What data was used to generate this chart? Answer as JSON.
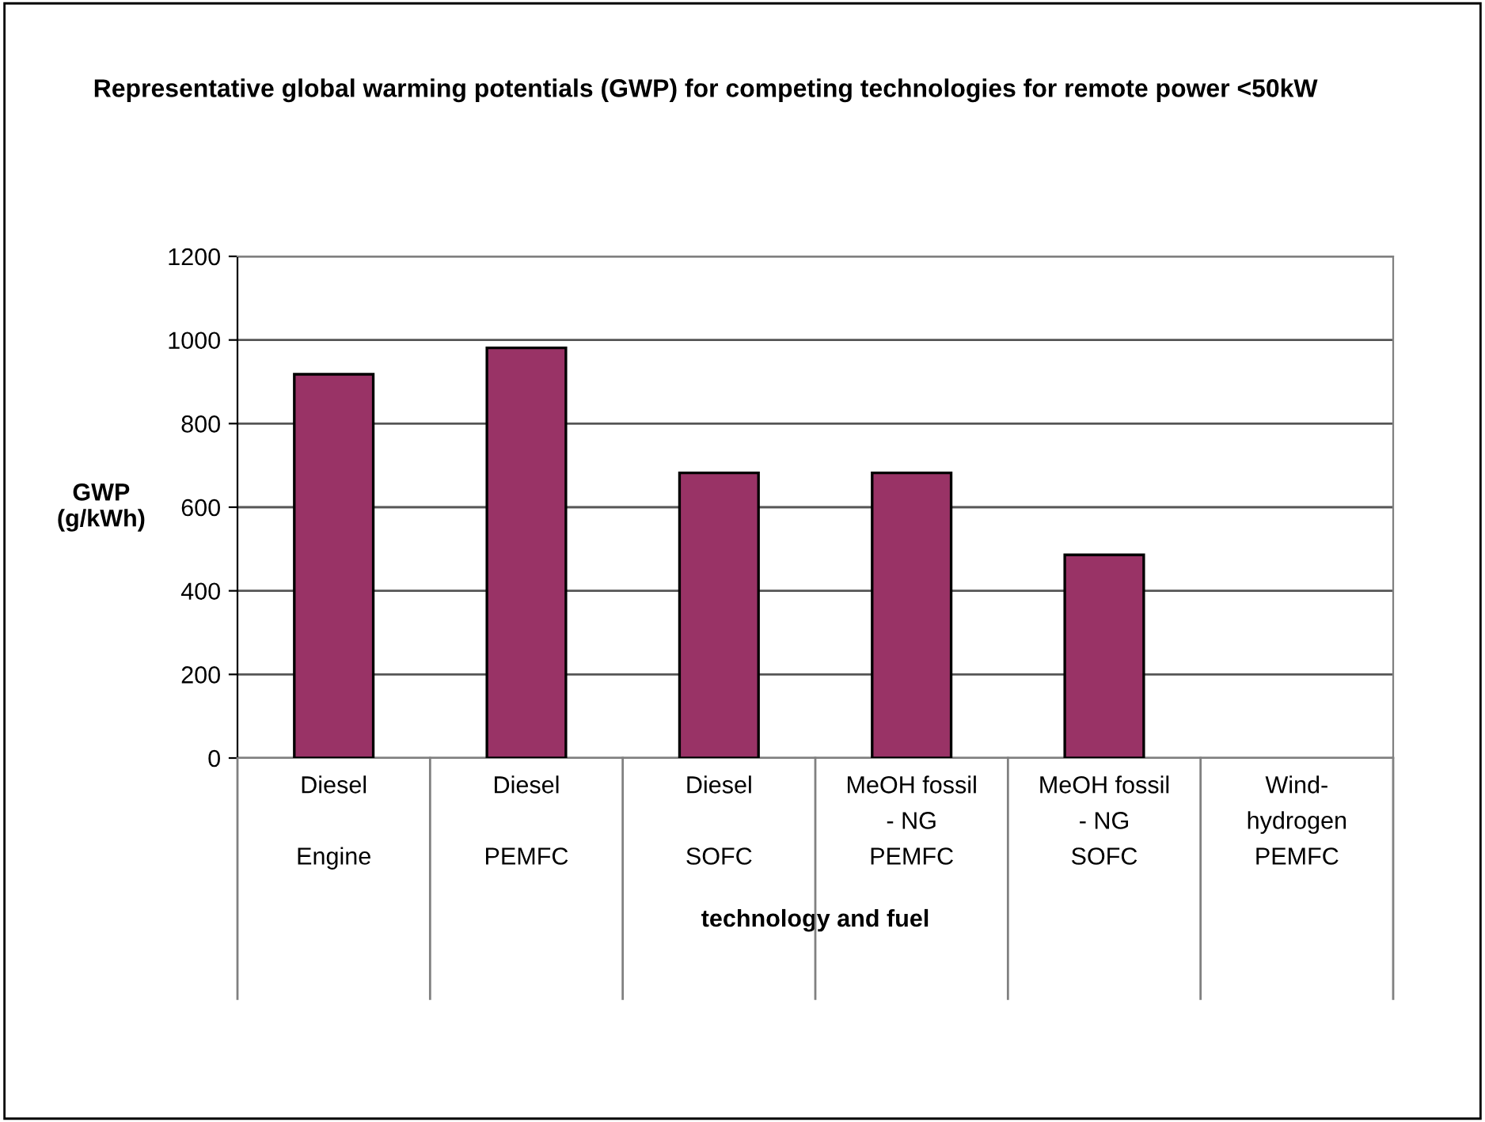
{
  "chart_data": {
    "type": "bar",
    "title": "Representative global warming potentials (GWP) for competing technologies for remote power <50kW",
    "xlabel": "technology and fuel",
    "ylabel": "GWP (g/kWh)",
    "categories": [
      "Diesel\nEngine",
      "Diesel\nPEMFC",
      "Diesel\nSOFC",
      "MeOH fossil - NG\nPEMFC",
      "MeOH fossil - NG\nSOFC",
      "Wind-hydrogen\nPEMFC"
    ],
    "values": [
      918,
      981,
      682,
      682,
      486,
      null
    ],
    "color": "#993366",
    "ylim": [
      0,
      1200
    ],
    "yticks": [
      0,
      200,
      400,
      600,
      800,
      1000,
      1200
    ],
    "grid": "y"
  }
}
